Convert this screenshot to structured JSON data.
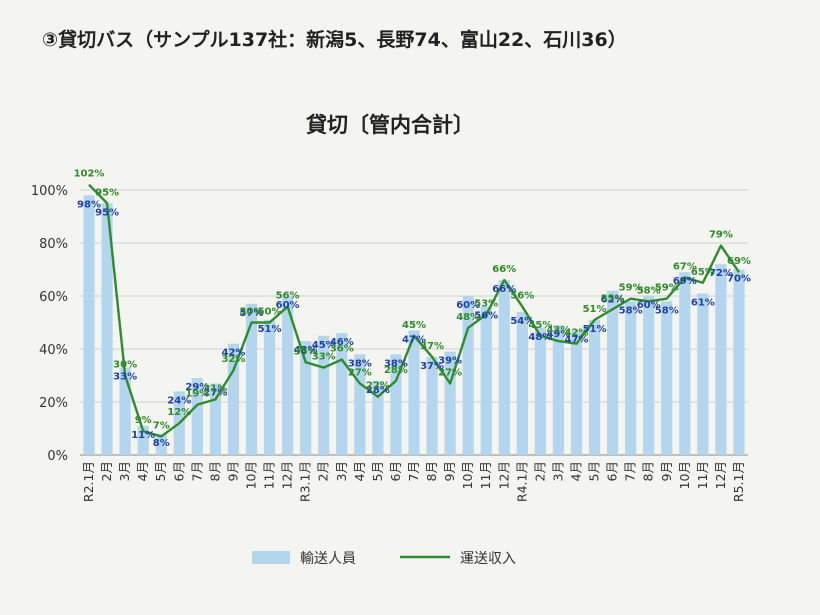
{
  "heading": "③貸切バス（サンプル137社：新潟5、長野74、富山22、石川36）",
  "chart_data": {
    "type": "bar",
    "title": "貸切〔管内合計〕",
    "categories": [
      "R2.1月",
      "2月",
      "3月",
      "4月",
      "5月",
      "6月",
      "7月",
      "8月",
      "9月",
      "10月",
      "11月",
      "12月",
      "R3.1月",
      "2月",
      "3月",
      "4月",
      "5月",
      "6月",
      "7月",
      "8月",
      "9月",
      "10月",
      "11月",
      "12月",
      "R4.1月",
      "2月",
      "3月",
      "4月",
      "5月",
      "6月",
      "7月",
      "8月",
      "9月",
      "10月",
      "11月",
      "12月",
      "R5.1月"
    ],
    "series": [
      {
        "name": "輸送人員",
        "type": "bar",
        "color": "#b3d6ee",
        "values": [
          98,
          95,
          33,
          11,
          8,
          24,
          29,
          27,
          42,
          57,
          51,
          60,
          43,
          45,
          46,
          38,
          28,
          38,
          47,
          37,
          39,
          60,
          56,
          66,
          54,
          48,
          49,
          47,
          51,
          62,
          58,
          60,
          58,
          69,
          61,
          72,
          70
        ],
        "labels": [
          "98%",
          "95%",
          "33%",
          "11%",
          "8%",
          "24%",
          "29%",
          "27%",
          "42%",
          "57%",
          "51%",
          "60%",
          "43%",
          "45%",
          "46%",
          "38%",
          "28%",
          "38%",
          "47%",
          "37%",
          "39%",
          "60%",
          "56%",
          "66%",
          "54%",
          "48%",
          "49%",
          "47%",
          "51%",
          "62%",
          "58%",
          "60%",
          "58%",
          "69%",
          "61%",
          "72%",
          "70%"
        ]
      },
      {
        "name": "運送収入",
        "type": "line",
        "color": "#2e8b2e",
        "values": [
          102,
          95,
          30,
          9,
          7,
          12,
          19,
          21,
          32,
          50,
          50,
          56,
          35,
          33,
          36,
          27,
          22,
          28,
          45,
          37,
          27,
          48,
          53,
          66,
          56,
          45,
          43,
          42,
          51,
          55,
          59,
          58,
          59,
          67,
          65,
          79,
          69
        ],
        "labels": [
          "102%",
          "95%",
          "30%",
          "9%",
          "7%",
          "12%",
          "19%",
          "21%",
          "32%",
          "50%",
          "50%",
          "56%",
          "35%",
          "33%",
          "36%",
          "27%",
          "22%",
          "28%",
          "45%",
          "37%",
          "27%",
          "48%",
          "53%",
          "66%",
          "56%",
          "45%",
          "43%",
          "42%",
          "51%",
          "55%",
          "59%",
          "58%",
          "59%",
          "67%",
          "65%",
          "79%",
          "69%"
        ]
      }
    ],
    "ylim": [
      0,
      100
    ],
    "yticks": [
      "0%",
      "20%",
      "40%",
      "60%",
      "80%",
      "100%"
    ],
    "grid": true,
    "legend_position": "bottom"
  }
}
